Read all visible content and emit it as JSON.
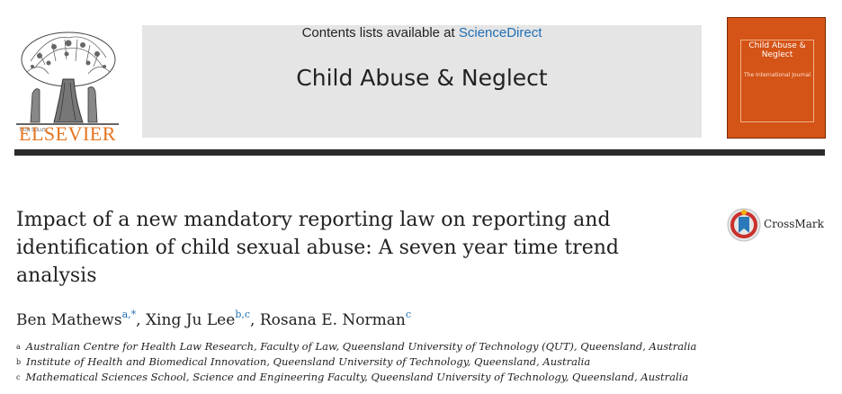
{
  "header": {
    "publisher_logo_text": "ELSEVIER",
    "contents_prefix": "Contents lists available at ",
    "contents_link": "ScienceDirect",
    "journal_name": "Child Abuse & Neglect",
    "cover": {
      "title": "Child Abuse & Neglect",
      "subtitle": "The International Journal"
    },
    "colors": {
      "band": "#e5e5e5",
      "link": "#1f6fb5",
      "elsevier": "#e8741e",
      "cover": "#d45316"
    }
  },
  "article": {
    "title_lines": [
      "Impact of a new mandatory reporting law on reporting and",
      "identification of child sexual abuse: A seven year time trend",
      "analysis"
    ],
    "crossmark_label": "CrossMark",
    "authors": [
      {
        "name": "Ben Mathews",
        "marks": "a,*",
        "sep": ", "
      },
      {
        "name": "Xing Ju Lee",
        "marks": "b,c",
        "sep": ", "
      },
      {
        "name": "Rosana E. Norman",
        "marks": "c",
        "sep": ""
      }
    ],
    "affiliations": [
      {
        "mark": "a",
        "text": "Australian Centre for Health Law Research, Faculty of Law, Queensland University of Technology (QUT), Queensland, Australia"
      },
      {
        "mark": "b",
        "text": "Institute of Health and Biomedical Innovation, Queensland University of Technology, Queensland, Australia"
      },
      {
        "mark": "c",
        "text": "Mathematical Sciences School, Science and Engineering Faculty, Queensland University of Technology, Queensland, Australia"
      }
    ]
  }
}
